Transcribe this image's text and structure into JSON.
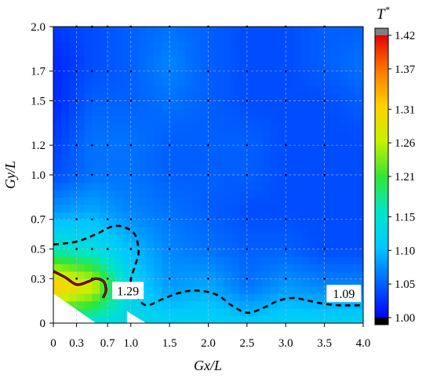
{
  "chart_data": {
    "type": "heatmap",
    "xlabel": "Gx/L",
    "ylabel": "Gy/L",
    "xlim": [
      0,
      4.0
    ],
    "ylim": [
      0,
      2.0
    ],
    "x_ticks": [
      0,
      0.3,
      0.7,
      1.0,
      1.5,
      2.0,
      2.5,
      3.0,
      3.5,
      4.0
    ],
    "x_tick_labels": [
      "0",
      "0.3",
      "0.7",
      "1.0",
      "1.5",
      "2.0",
      "2.5",
      "3.0",
      "3.5",
      "4.0"
    ],
    "y_ticks": [
      0,
      0.3,
      0.5,
      0.7,
      1.0,
      1.2,
      1.5,
      1.7,
      2.0
    ],
    "y_tick_labels": [
      "0",
      "0.3",
      "0.5",
      "0.7",
      "1.0",
      "1.2",
      "1.5",
      "1.7",
      "2.0"
    ],
    "grid": true,
    "colorbar": {
      "title": "T",
      "title_superscript": "*",
      "range": [
        1.0,
        1.42
      ],
      "tick_values": [
        1.0,
        1.05,
        1.1,
        1.15,
        1.21,
        1.26,
        1.31,
        1.37,
        1.42
      ],
      "tick_labels": [
        "1.00",
        "1.05",
        "1.10",
        "1.15",
        "1.21",
        "1.26",
        "1.31",
        "1.37",
        "1.42"
      ],
      "colormap": [
        "#0000ff",
        "#0064ff",
        "#00c8ff",
        "#00e6c8",
        "#32e632",
        "#c8f000",
        "#ffd200",
        "#ff7800",
        "#e60000"
      ]
    },
    "contour_lines": [
      {
        "level": 1.09,
        "label": "1.09",
        "style": "dashed",
        "points": [
          [
            0,
            0.53
          ],
          [
            0.3,
            0.55
          ],
          [
            0.55,
            0.6
          ],
          [
            0.75,
            0.65
          ],
          [
            0.9,
            0.65
          ],
          [
            1.05,
            0.6
          ],
          [
            1.1,
            0.48
          ],
          [
            1.05,
            0.38
          ],
          [
            1.0,
            0.28
          ],
          [
            1.08,
            0.18
          ],
          [
            1.2,
            0.12
          ],
          [
            1.4,
            0.16
          ],
          [
            1.6,
            0.2
          ],
          [
            1.8,
            0.22
          ],
          [
            2.0,
            0.21
          ],
          [
            2.15,
            0.18
          ],
          [
            2.3,
            0.12
          ],
          [
            2.5,
            0.07
          ],
          [
            2.7,
            0.1
          ],
          [
            2.9,
            0.15
          ],
          [
            3.1,
            0.17
          ],
          [
            3.3,
            0.15
          ],
          [
            3.5,
            0.13
          ],
          [
            3.7,
            0.12
          ],
          [
            4.0,
            0.12
          ]
        ]
      },
      {
        "level": 1.29,
        "label": "1.29",
        "style": "solid",
        "points": [
          [
            0,
            0.35
          ],
          [
            0.15,
            0.31
          ],
          [
            0.3,
            0.26
          ],
          [
            0.45,
            0.28
          ],
          [
            0.55,
            0.3
          ],
          [
            0.65,
            0.28
          ],
          [
            0.68,
            0.22
          ],
          [
            0.64,
            0.17
          ]
        ]
      }
    ],
    "measurement_points_x": [
      0.3,
      0.5,
      0.7,
      1.0,
      1.5,
      2.0,
      2.5,
      3.0,
      3.5
    ],
    "measurement_points_y": [
      0.3,
      0.5,
      0.7,
      1.0,
      1.2,
      1.5,
      1.7,
      2.0
    ],
    "field": {
      "x": [
        0,
        0.5,
        1.0,
        1.5,
        2.0,
        2.5,
        3.0,
        3.5,
        4.0
      ],
      "y": [
        0,
        0.25,
        0.5,
        0.75,
        1.0,
        1.25,
        1.5,
        1.75,
        2.0
      ],
      "values": [
        [
          1.15,
          1.14,
          1.13,
          1.12,
          1.12,
          1.11,
          1.12,
          1.12,
          1.12
        ],
        [
          1.33,
          1.28,
          1.12,
          1.08,
          1.09,
          1.06,
          1.08,
          1.07,
          1.07
        ],
        [
          1.16,
          1.14,
          1.1,
          1.07,
          1.06,
          1.05,
          1.05,
          1.04,
          1.04
        ],
        [
          1.08,
          1.09,
          1.07,
          1.06,
          1.05,
          1.04,
          1.04,
          1.04,
          1.04
        ],
        [
          1.04,
          1.06,
          1.06,
          1.05,
          1.05,
          1.05,
          1.04,
          1.04,
          1.04
        ],
        [
          1.03,
          1.06,
          1.06,
          1.05,
          1.05,
          1.05,
          1.04,
          1.04,
          1.04
        ],
        [
          1.02,
          1.05,
          1.05,
          1.06,
          1.05,
          1.04,
          1.04,
          1.04,
          1.05
        ],
        [
          1.02,
          1.04,
          1.05,
          1.07,
          1.05,
          1.04,
          1.04,
          1.05,
          1.06
        ],
        [
          1.03,
          1.04,
          1.05,
          1.06,
          1.05,
          1.04,
          1.04,
          1.05,
          1.05
        ]
      ]
    },
    "blank_regions": [
      {
        "name": "bottom-left-blank",
        "polygon": [
          [
            0,
            0.2
          ],
          [
            0.55,
            0
          ],
          [
            0,
            0
          ]
        ]
      },
      {
        "name": "bottom-wedge-blank",
        "polygon": [
          [
            0.95,
            0.08
          ],
          [
            1.2,
            0
          ],
          [
            0.95,
            0
          ]
        ]
      }
    ]
  }
}
